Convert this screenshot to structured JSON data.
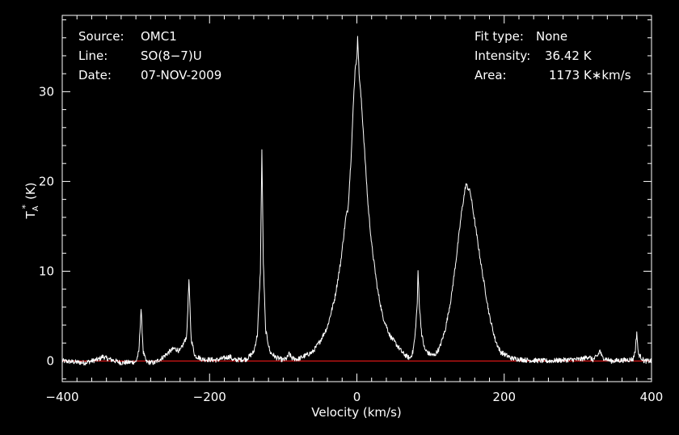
{
  "chart_data": {
    "type": "line",
    "xlabel": "Velocity (km/s)",
    "ylabel": {
      "main": "T",
      "sub": "A",
      "sup": "*",
      "unit": "(K)"
    },
    "xlim": [
      -400,
      400
    ],
    "ylim": [
      -2.3,
      38.5
    ],
    "x_ticks": [
      -400,
      -200,
      0,
      200,
      400
    ],
    "y_ticks": [
      0,
      10,
      20,
      30
    ],
    "baseline": 0,
    "info_left": [
      {
        "label": "Source:",
        "value": "OMC1"
      },
      {
        "label": "Line:",
        "value": "SO(8−7)U"
      },
      {
        "label": "Date:",
        "value": "07-NOV-2009"
      }
    ],
    "info_right": [
      {
        "label": "Fit type:",
        "value": "None"
      },
      {
        "label": "Intensity:",
        "value": "36.42 K"
      },
      {
        "label": "Area:",
        "value": "1173 K∗km/s"
      }
    ],
    "series": [
      {
        "points": [
          [
            -400,
            0.0
          ],
          [
            -370,
            -0.2
          ],
          [
            -350,
            0.2
          ],
          [
            -345,
            0.5
          ],
          [
            -340,
            0.3
          ],
          [
            -320,
            -0.2
          ],
          [
            -300,
            -0.1
          ],
          [
            -296,
            1.0
          ],
          [
            -293,
            5.8
          ],
          [
            -290,
            1.0
          ],
          [
            -286,
            -0.1
          ],
          [
            -275,
            -0.2
          ],
          [
            -265,
            0.3
          ],
          [
            -255,
            1.0
          ],
          [
            -248,
            1.4
          ],
          [
            -240,
            1.1
          ],
          [
            -235,
            2.0
          ],
          [
            -231,
            2.8
          ],
          [
            -228,
            9.0
          ],
          [
            -225,
            2.5
          ],
          [
            -220,
            0.6
          ],
          [
            -210,
            0.2
          ],
          [
            -190,
            0.1
          ],
          [
            -172,
            0.5
          ],
          [
            -168,
            0.1
          ],
          [
            -150,
            0.2
          ],
          [
            -140,
            1.0
          ],
          [
            -135,
            3.0
          ],
          [
            -131,
            10.0
          ],
          [
            -129,
            23.5
          ],
          [
            -127,
            11.0
          ],
          [
            -124,
            3.5
          ],
          [
            -118,
            1.0
          ],
          [
            -110,
            0.4
          ],
          [
            -100,
            0.1
          ],
          [
            -95,
            0.3
          ],
          [
            -92,
            0.8
          ],
          [
            -88,
            0.3
          ],
          [
            -80,
            0.2
          ],
          [
            -70,
            0.6
          ],
          [
            -60,
            1.0
          ],
          [
            -50,
            2.2
          ],
          [
            -40,
            3.8
          ],
          [
            -30,
            7.0
          ],
          [
            -22,
            11.0
          ],
          [
            -15,
            16.0
          ],
          [
            -12,
            17.0
          ],
          [
            -8,
            22.5
          ],
          [
            -4,
            30.0
          ],
          [
            -2,
            33.0
          ],
          [
            0,
            33.5
          ],
          [
            1,
            36.4
          ],
          [
            3,
            32.0
          ],
          [
            6,
            29.0
          ],
          [
            10,
            24.0
          ],
          [
            15,
            17.5
          ],
          [
            20,
            13.0
          ],
          [
            28,
            8.0
          ],
          [
            35,
            5.0
          ],
          [
            45,
            2.8
          ],
          [
            55,
            1.7
          ],
          [
            62,
            0.9
          ],
          [
            68,
            0.5
          ],
          [
            72,
            0.3
          ],
          [
            76,
            1.0
          ],
          [
            79,
            2.8
          ],
          [
            82,
            6.5
          ],
          [
            83,
            10.0
          ],
          [
            85,
            6.0
          ],
          [
            88,
            3.0
          ],
          [
            92,
            1.3
          ],
          [
            98,
            0.8
          ],
          [
            105,
            0.6
          ],
          [
            112,
            1.4
          ],
          [
            120,
            3.5
          ],
          [
            128,
            7.0
          ],
          [
            135,
            11.5
          ],
          [
            142,
            16.5
          ],
          [
            148,
            19.7
          ],
          [
            154,
            18.8
          ],
          [
            160,
            15.5
          ],
          [
            170,
            10.0
          ],
          [
            180,
            5.0
          ],
          [
            188,
            2.3
          ],
          [
            195,
            1.0
          ],
          [
            210,
            0.3
          ],
          [
            230,
            0.1
          ],
          [
            260,
            0.0
          ],
          [
            280,
            0.1
          ],
          [
            305,
            0.2
          ],
          [
            315,
            0.5
          ],
          [
            320,
            0.1
          ],
          [
            327,
            0.6
          ],
          [
            330,
            1.2
          ],
          [
            333,
            0.4
          ],
          [
            345,
            0.0
          ],
          [
            365,
            0.1
          ],
          [
            375,
            0.2
          ],
          [
            378,
            1.2
          ],
          [
            380,
            3.2
          ],
          [
            382,
            0.8
          ],
          [
            390,
            0.0
          ],
          [
            400,
            0.0
          ]
        ]
      }
    ]
  }
}
